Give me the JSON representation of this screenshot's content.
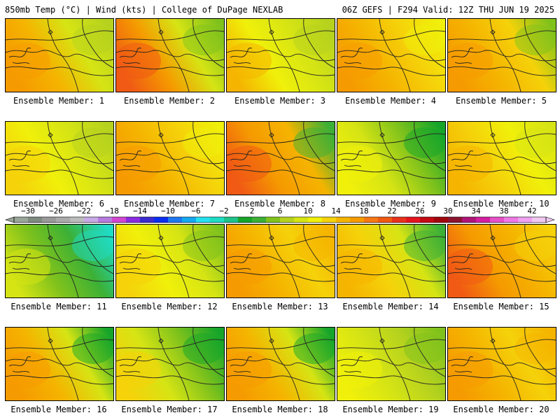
{
  "header": {
    "left": "850mb Temp (°C) | Wind (kts) | College of DuPage NEXLAB",
    "right": "06Z GEFS | F294 Valid: 12Z THU JUN 19 2025"
  },
  "colorbar": {
    "ticks": [
      "−30",
      "−26",
      "−22",
      "−18",
      "−14",
      "−10",
      "−6",
      "−2",
      "2",
      "6",
      "10",
      "14",
      "18",
      "22",
      "26",
      "30",
      "34",
      "38",
      "42"
    ],
    "colors": [
      "#9aa59a",
      "#7f8a80",
      "#999999",
      "#aaaaaa",
      "#bcbcbc",
      "#c7a9e6",
      "#b77be0",
      "#d246d2",
      "#8a2be0",
      "#3b2bd0",
      "#0a2ef0",
      "#1e78f0",
      "#14a9f0",
      "#25e0f0",
      "#1fdcc4",
      "#1ec28a",
      "#16a52a",
      "#3cb036",
      "#80c21c",
      "#b6d21e",
      "#d6e414",
      "#f0f00a",
      "#f5d20a",
      "#f5b400",
      "#f59a00",
      "#f57814",
      "#f05a14",
      "#e8321e",
      "#e6141e",
      "#c40a14",
      "#a0060e",
      "#8c1430",
      "#b01478",
      "#d41ea0",
      "#e650c8",
      "#f078e6",
      "#f0a0f0",
      "#f0c8f0"
    ]
  },
  "panels": [
    {
      "label": "Ensemble Member: 1",
      "colors": [
        "#f59a00",
        "#f5b400",
        "#d6e414",
        "#b6d21e"
      ]
    },
    {
      "label": "Ensemble Member: 2",
      "colors": [
        "#f05a14",
        "#f59a00",
        "#d6e414",
        "#80c21c"
      ]
    },
    {
      "label": "Ensemble Member: 3",
      "colors": [
        "#f5b400",
        "#f0f00a",
        "#d6e414",
        "#b6d21e"
      ]
    },
    {
      "label": "Ensemble Member: 4",
      "colors": [
        "#f59a00",
        "#f5b400",
        "#f5d20a",
        "#f0f00a"
      ]
    },
    {
      "label": "Ensemble Member: 5",
      "colors": [
        "#f59a00",
        "#f5b400",
        "#f5d20a",
        "#80c21c"
      ]
    },
    {
      "label": "Ensemble Member: 6",
      "colors": [
        "#f5d20a",
        "#f0f00a",
        "#d6e414",
        "#b6d21e"
      ]
    },
    {
      "label": "Ensemble Member: 7",
      "colors": [
        "#f59a00",
        "#f5b400",
        "#f5d20a",
        "#f0f00a"
      ]
    },
    {
      "label": "Ensemble Member: 8",
      "colors": [
        "#f05a14",
        "#f59a00",
        "#f5b400",
        "#3cb036"
      ]
    },
    {
      "label": "Ensemble Member: 9",
      "colors": [
        "#f0f00a",
        "#d6e414",
        "#80c21c",
        "#16a52a"
      ]
    },
    {
      "label": "Ensemble Member: 10",
      "colors": [
        "#f5b400",
        "#f5d20a",
        "#f0f00a",
        "#d6e414"
      ]
    },
    {
      "label": "Ensemble Member: 11",
      "colors": [
        "#d6e414",
        "#80c21c",
        "#3cb036",
        "#1fdcc4"
      ]
    },
    {
      "label": "Ensemble Member: 12",
      "colors": [
        "#f5d20a",
        "#f0f00a",
        "#d6e414",
        "#80c21c"
      ]
    },
    {
      "label": "Ensemble Member: 13",
      "colors": [
        "#f59a00",
        "#f5b400",
        "#f5d20a",
        "#f5b400"
      ]
    },
    {
      "label": "Ensemble Member: 14",
      "colors": [
        "#f5b400",
        "#f5d20a",
        "#d6e414",
        "#3cb036"
      ]
    },
    {
      "label": "Ensemble Member: 15",
      "colors": [
        "#f05a14",
        "#f59a00",
        "#f5b400",
        "#f5d20a"
      ]
    },
    {
      "label": "Ensemble Member: 16",
      "colors": [
        "#f59a00",
        "#f5b400",
        "#d6e414",
        "#16a52a"
      ]
    },
    {
      "label": "Ensemble Member: 17",
      "colors": [
        "#f5d20a",
        "#d6e414",
        "#80c21c",
        "#16a52a"
      ]
    },
    {
      "label": "Ensemble Member: 18",
      "colors": [
        "#f59a00",
        "#f5b400",
        "#d6e414",
        "#16a52a"
      ]
    },
    {
      "label": "Ensemble Member: 19",
      "colors": [
        "#f0f00a",
        "#d6e414",
        "#b6d21e",
        "#80c21c"
      ]
    },
    {
      "label": "Ensemble Member: 20",
      "colors": [
        "#f59a00",
        "#f5b400",
        "#f5d20a",
        "#f5b400"
      ]
    }
  ]
}
